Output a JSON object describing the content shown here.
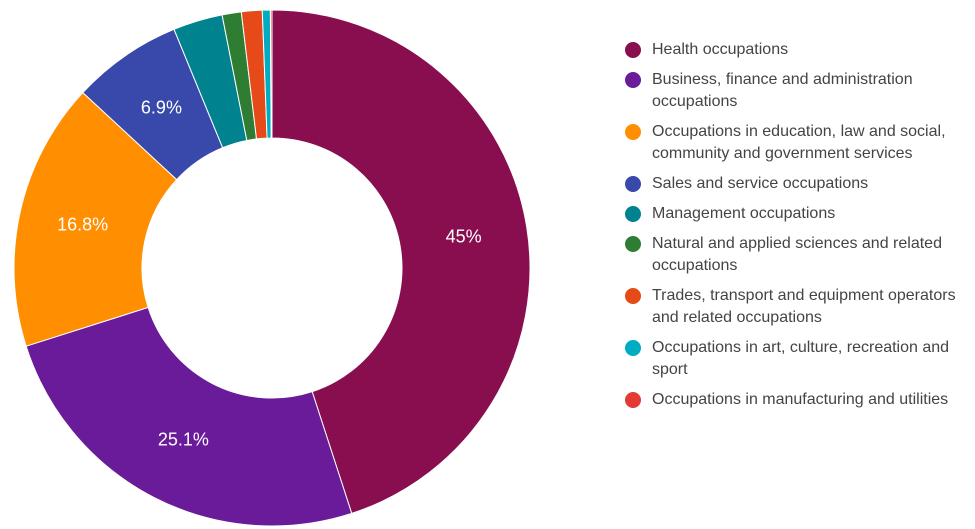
{
  "chart_data": {
    "type": "pie",
    "donut": true,
    "categories": [
      "Health occupations",
      "Business, finance and administration occupations",
      "Occupations in education, law and social, community and government services",
      "Sales and service occupations",
      "Management occupations",
      "Natural and applied sciences and related occupations",
      "Trades, transport and equipment operators and related occupations",
      "Occupations in art, culture, recreation and sport",
      "Occupations in manufacturing and utilities"
    ],
    "values": [
      45,
      25.1,
      16.8,
      6.9,
      3.1,
      1.2,
      1.3,
      0.5,
      0.1
    ],
    "value_labels": [
      "45%",
      "25.1%",
      "16.8%",
      "6.9%",
      null,
      null,
      null,
      null,
      null
    ],
    "colors": [
      "#880e4f",
      "#6a1b9a",
      "#ff8f00",
      "#3949ab",
      "#00838f",
      "#2e7d32",
      "#e64a19",
      "#00acc1",
      "#e53935"
    ],
    "legend": "right"
  }
}
